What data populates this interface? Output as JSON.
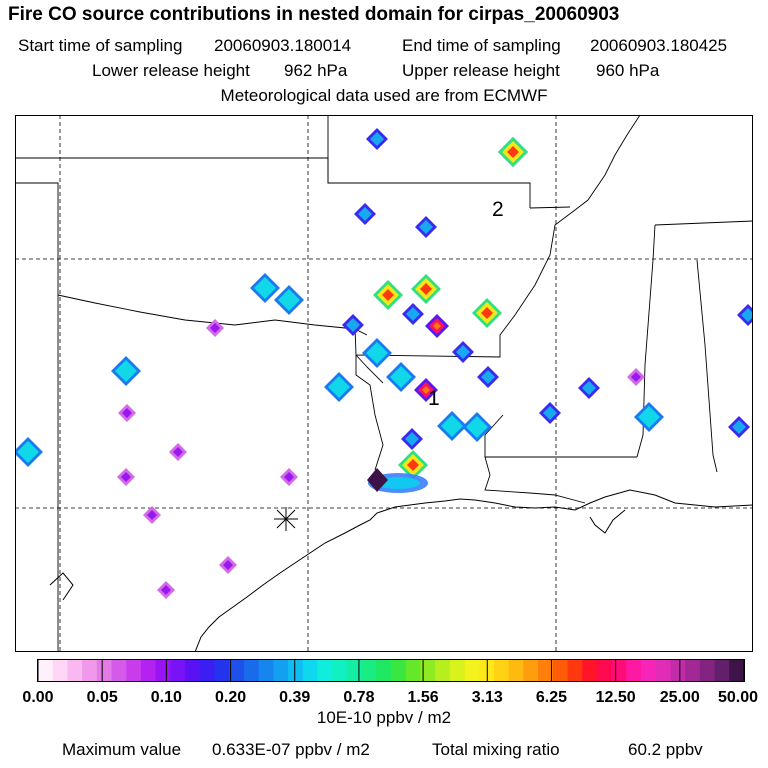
{
  "title": "Fire CO source contributions in nested domain for cirpas_20060903",
  "start_label": "Start time of sampling",
  "start_value": "20060903.180014",
  "end_label": "End time of sampling",
  "end_value": "20060903.180425",
  "lower_label": "Lower release height",
  "lower_value": "962 hPa",
  "upper_label": "Upper release height",
  "upper_value": "960 hPa",
  "met_line": "Meteorological data used are from ECMWF",
  "markers": [
    "1",
    "2"
  ],
  "colorbar": {
    "ticks": [
      "0.00",
      "0.05",
      "0.10",
      "0.20",
      "0.39",
      "0.78",
      "1.56",
      "3.13",
      "6.25",
      "12.50",
      "25.00",
      "50.00"
    ],
    "unit": "10E-10 ppbv / m2",
    "colors": [
      "#fff0fb",
      "#ffd6f5",
      "#f9b8f0",
      "#f099ea",
      "#e37ae6",
      "#d45ae8",
      "#c83cec",
      "#b322f0",
      "#9914f5",
      "#7a12f8",
      "#5a12f5",
      "#3a1ef2",
      "#2433ec",
      "#1e50ea",
      "#1a6aec",
      "#1685ee",
      "#12a0f0",
      "#10bdf2",
      "#0dd8ee",
      "#0feedd",
      "#10f0c0",
      "#14eea2",
      "#18ec82",
      "#1ee860",
      "#3ae640",
      "#66e82a",
      "#8eea22",
      "#b6ee1e",
      "#d8f21c",
      "#f2f21c",
      "#ffe818",
      "#ffd214",
      "#ffba10",
      "#ff9e0c",
      "#ff7f0a",
      "#ff5c0a",
      "#ff380f",
      "#ff1428",
      "#ff0a50",
      "#ff0c78",
      "#ff18a0",
      "#f624b8",
      "#e02cb6",
      "#c22ca8",
      "#a22896",
      "#822480",
      "#62206a",
      "#3e1448"
    ]
  },
  "footer": {
    "max_label": "Maximum value",
    "max_value": "0.633E-07 ppbv / m2",
    "total_label": "Total mixing ratio",
    "total_value": "60.2 ppbv"
  }
}
